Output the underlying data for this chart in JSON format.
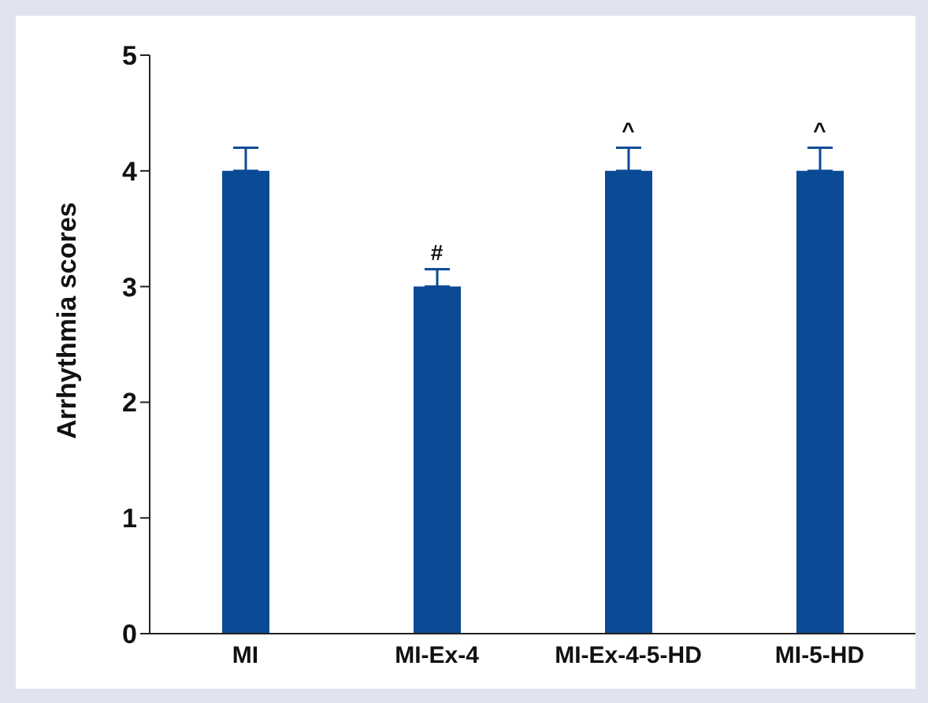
{
  "chart_data": {
    "type": "bar",
    "ylabel": "Arrhythmia scores",
    "categories": [
      "MI",
      "MI-Ex-4",
      "MI-Ex-4-5-HD",
      "MI-5-HD"
    ],
    "values": [
      4,
      3,
      4,
      4
    ],
    "errors": [
      [
        4,
        4.2
      ],
      [
        3,
        3.15
      ],
      [
        4,
        4.2
      ],
      [
        4,
        4.2
      ]
    ],
    "color": "#0b4a95",
    "ylim": [
      0,
      5
    ],
    "yticks": [
      0,
      1,
      2,
      3,
      4,
      5
    ],
    "grid": false,
    "legend": false,
    "annotations": [
      {
        "text": "#",
        "x": "MI-Ex-4",
        "y": 3.15
      },
      {
        "text": "^",
        "x": "MI-Ex-4-5-HD",
        "y": 4.2
      },
      {
        "text": "^",
        "x": "MI-5-HD",
        "y": 4.2
      }
    ]
  }
}
